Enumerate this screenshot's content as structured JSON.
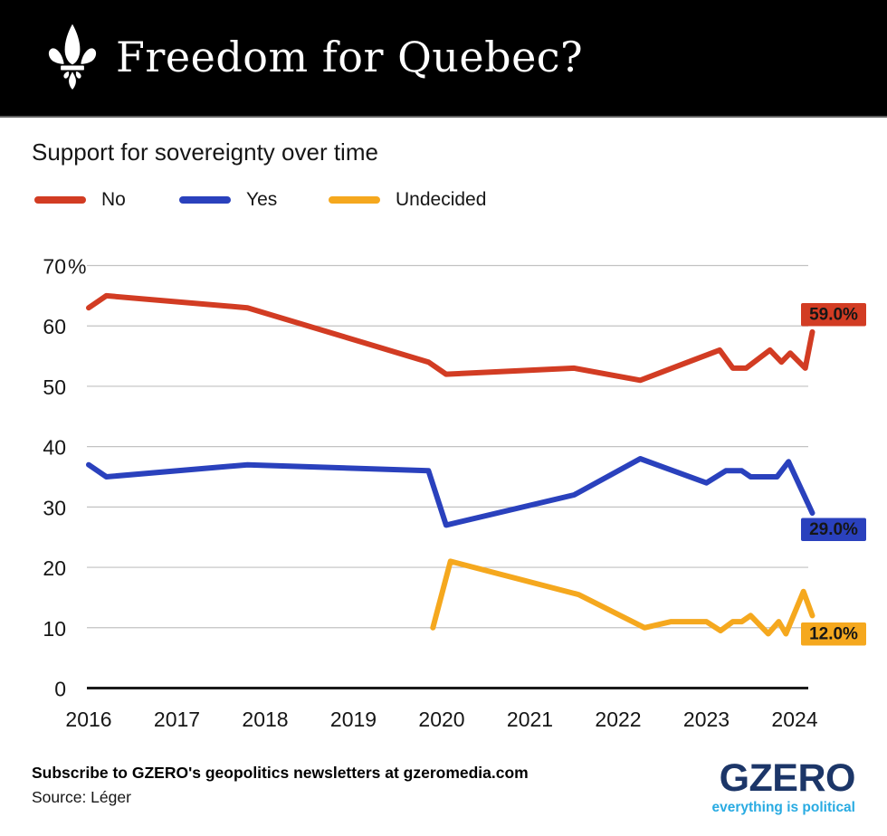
{
  "header": {
    "title": "Freedom for Quebec?",
    "icon": "fleur-de-lis-icon",
    "background": "#000000"
  },
  "subtitle": "Support for sovereignty over time",
  "legend": [
    {
      "label": "No",
      "color": "#d23c23"
    },
    {
      "label": "Yes",
      "color": "#2a41bd"
    },
    {
      "label": "Undecided",
      "color": "#f5a81e"
    }
  ],
  "chart_data": {
    "type": "line",
    "title": "Support for sovereignty over time",
    "grid": true,
    "x_axis": {
      "ticks": [
        2016,
        2017,
        2018,
        2019,
        2020,
        2021,
        2022,
        2023,
        2024
      ],
      "min": 2016,
      "max": 2024.25
    },
    "y_axis": {
      "min": 0,
      "max": 70,
      "unit": "%",
      "tick_labels": [
        "0",
        "10",
        "20",
        "30",
        "40",
        "50",
        "60",
        "70%"
      ],
      "ticks": [
        0,
        10,
        20,
        30,
        40,
        50,
        60,
        70
      ]
    },
    "series": [
      {
        "name": "No",
        "color": "#d23c23",
        "end_label": "59.0%",
        "points": [
          [
            2016.0,
            63
          ],
          [
            2016.2,
            65
          ],
          [
            2017.8,
            63
          ],
          [
            2019.85,
            54
          ],
          [
            2020.05,
            52
          ],
          [
            2021.5,
            53
          ],
          [
            2022.25,
            51
          ],
          [
            2023.15,
            56
          ],
          [
            2023.3,
            53
          ],
          [
            2023.45,
            53
          ],
          [
            2023.72,
            56
          ],
          [
            2023.85,
            54
          ],
          [
            2023.95,
            55.5
          ],
          [
            2024.12,
            53
          ],
          [
            2024.2,
            59
          ]
        ]
      },
      {
        "name": "Yes",
        "color": "#2a41bd",
        "end_label": "29.0%",
        "points": [
          [
            2016.0,
            37
          ],
          [
            2016.2,
            35
          ],
          [
            2017.8,
            37
          ],
          [
            2019.85,
            36
          ],
          [
            2020.05,
            27
          ],
          [
            2021.5,
            32
          ],
          [
            2022.25,
            38
          ],
          [
            2023.0,
            34
          ],
          [
            2023.22,
            36
          ],
          [
            2023.4,
            36
          ],
          [
            2023.5,
            35
          ],
          [
            2023.8,
            35
          ],
          [
            2023.93,
            37.5
          ],
          [
            2024.2,
            29
          ]
        ]
      },
      {
        "name": "Undecided",
        "color": "#f5a81e",
        "end_label": "12.0%",
        "points": [
          [
            2019.9,
            10
          ],
          [
            2020.1,
            21
          ],
          [
            2021.55,
            15.5
          ],
          [
            2022.3,
            10
          ],
          [
            2022.6,
            11
          ],
          [
            2023.0,
            11
          ],
          [
            2023.16,
            9.5
          ],
          [
            2023.3,
            11
          ],
          [
            2023.4,
            11
          ],
          [
            2023.5,
            12
          ],
          [
            2023.7,
            9
          ],
          [
            2023.82,
            11
          ],
          [
            2023.9,
            9
          ],
          [
            2024.1,
            16
          ],
          [
            2024.2,
            12
          ]
        ]
      }
    ]
  },
  "footer": {
    "subscribe": "Subscribe to GZERO's geopolitics newsletters at gzeromedia.com",
    "source": "Source: Léger",
    "logo": "GZERO",
    "tagline": "everything is political",
    "logo_color": "#1c3668",
    "tagline_color": "#29abe2"
  }
}
